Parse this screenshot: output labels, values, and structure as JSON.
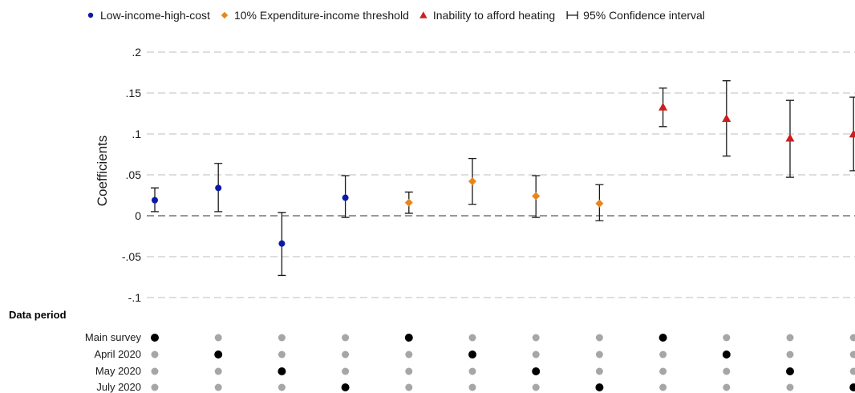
{
  "chart_data": {
    "type": "scatter",
    "ylabel": "Coefficients",
    "ylim": [
      -0.1,
      0.2
    ],
    "y_ticks": [
      {
        "value": 0.2,
        "label": ".2"
      },
      {
        "value": 0.15,
        "label": ".15"
      },
      {
        "value": 0.1,
        "label": ".1"
      },
      {
        "value": 0.05,
        "label": ".05"
      },
      {
        "value": 0,
        "label": "0"
      },
      {
        "value": -0.05,
        "label": "-.05"
      },
      {
        "value": -0.1,
        "label": "-.1"
      }
    ],
    "grid": true,
    "legend_position": "top",
    "legend": [
      {
        "label": "Low-income-high-cost",
        "marker": "circle",
        "color": "#0a1aa8"
      },
      {
        "label": "10% Expenditure-income threshold",
        "marker": "diamond",
        "color": "#e8861a"
      },
      {
        "label": "Inability to afford heating",
        "marker": "triangle",
        "color": "#cc1f1f"
      },
      {
        "label": "95% Confidence interval",
        "marker": "ci",
        "color": "#1a1a1a"
      }
    ],
    "series": [
      {
        "name": "Low-income-high-cost",
        "marker": "circle",
        "color": "#0a1aa8",
        "points": [
          {
            "x": 1,
            "y": 0.019,
            "lo": 0.005,
            "hi": 0.034
          },
          {
            "x": 2,
            "y": 0.034,
            "lo": 0.005,
            "hi": 0.064
          },
          {
            "x": 3,
            "y": -0.034,
            "lo": -0.073,
            "hi": 0.004
          },
          {
            "x": 4,
            "y": 0.022,
            "lo": -0.002,
            "hi": 0.049
          }
        ]
      },
      {
        "name": "10% Expenditure-income threshold",
        "marker": "diamond",
        "color": "#e8861a",
        "points": [
          {
            "x": 5,
            "y": 0.016,
            "lo": 0.003,
            "hi": 0.029
          },
          {
            "x": 6,
            "y": 0.042,
            "lo": 0.014,
            "hi": 0.07
          },
          {
            "x": 7,
            "y": 0.024,
            "lo": -0.002,
            "hi": 0.049
          },
          {
            "x": 8,
            "y": 0.015,
            "lo": -0.006,
            "hi": 0.038
          }
        ]
      },
      {
        "name": "Inability to afford heating",
        "marker": "triangle",
        "color": "#cc1f1f",
        "points": [
          {
            "x": 9,
            "y": 0.133,
            "lo": 0.109,
            "hi": 0.156
          },
          {
            "x": 10,
            "y": 0.119,
            "lo": 0.073,
            "hi": 0.165
          },
          {
            "x": 11,
            "y": 0.095,
            "lo": 0.047,
            "hi": 0.141
          },
          {
            "x": 12,
            "y": 0.1,
            "lo": 0.055,
            "hi": 0.145
          }
        ]
      }
    ],
    "period_matrix": {
      "title": "Data period",
      "rows": [
        "Main survey",
        "April 2020",
        "May 2020",
        "July 2020"
      ],
      "active_row_by_x": [
        1,
        2,
        3,
        4,
        1,
        2,
        3,
        4,
        1,
        2,
        3,
        4
      ],
      "active_color": "#000000",
      "inactive_color": "#a6a6a6"
    }
  }
}
